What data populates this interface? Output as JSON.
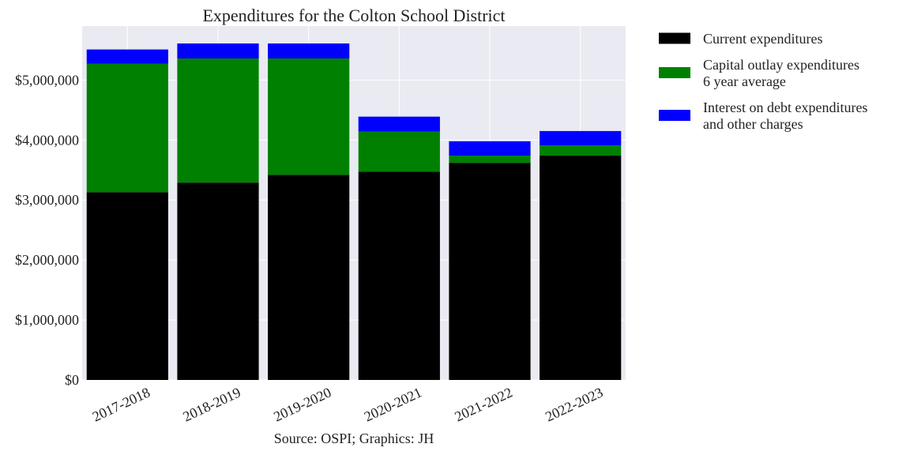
{
  "chart_data": {
    "type": "bar",
    "stacked": true,
    "title": "Expenditures for the Colton School District",
    "xlabel": "",
    "ylabel": "",
    "categories": [
      "2017-2018",
      "2018-2019",
      "2019-2020",
      "2020-2021",
      "2021-2022",
      "2022-2023"
    ],
    "series": [
      {
        "name": "Current expenditures",
        "color": "#000000",
        "values": [
          3130000,
          3290000,
          3420000,
          3470000,
          3620000,
          3740000
        ]
      },
      {
        "name": "Capital outlay expenditures\n6 year average",
        "color": "#008000",
        "values": [
          2140000,
          2070000,
          1940000,
          670000,
          120000,
          170000
        ]
      },
      {
        "name": "Interest on debt expenditures\nand other charges",
        "color": "#0000ff",
        "values": [
          240000,
          250000,
          250000,
          250000,
          240000,
          240000
        ]
      }
    ],
    "ylim": [
      0,
      5900000
    ],
    "yticks": [
      0,
      1000000,
      2000000,
      3000000,
      4000000,
      5000000
    ],
    "ytick_labels": [
      "$0",
      "$1,000,000",
      "$2,000,000",
      "$3,000,000",
      "$4,000,000",
      "$5,000,000"
    ],
    "grid": true,
    "legend_position": "outside-right-top",
    "source_note": "Source: OSPI; Graphics: JH",
    "colors": {
      "plot_background": "#eaeaf2",
      "grid": "#ffffff"
    }
  }
}
